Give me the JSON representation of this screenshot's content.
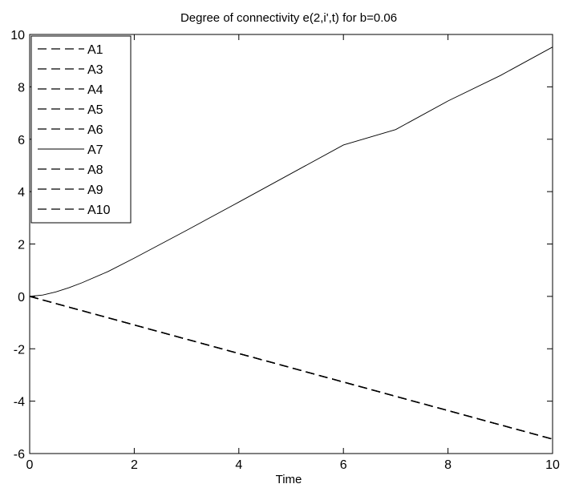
{
  "chart_data": {
    "type": "line",
    "title": "Degree of connectivity e(2,i',t) for b=0.06",
    "xlabel": "Time",
    "ylabel": "",
    "xlim": [
      0,
      10
    ],
    "ylim": [
      -6,
      10
    ],
    "x_ticks": [
      0,
      2,
      4,
      6,
      8,
      10
    ],
    "y_ticks": [
      -6,
      -4,
      -2,
      0,
      2,
      4,
      6,
      8,
      10
    ],
    "grid": false,
    "legend_position": "top-left",
    "series": [
      {
        "name": "A1",
        "style": "dashed",
        "color": "#000000",
        "x": [
          0,
          10
        ],
        "y": [
          0,
          -5.45
        ]
      },
      {
        "name": "A3",
        "style": "dashed",
        "color": "#000000",
        "x": [
          0,
          10
        ],
        "y": [
          0,
          -5.45
        ]
      },
      {
        "name": "A4",
        "style": "dashed",
        "color": "#000000",
        "x": [
          0,
          10
        ],
        "y": [
          0,
          -5.45
        ]
      },
      {
        "name": "A5",
        "style": "dashed",
        "color": "#000000",
        "x": [
          0,
          10
        ],
        "y": [
          0,
          -5.45
        ]
      },
      {
        "name": "A6",
        "style": "dashed",
        "color": "#000000",
        "x": [
          0,
          10
        ],
        "y": [
          0,
          -5.45
        ]
      },
      {
        "name": "A7",
        "style": "solid",
        "color": "#000000",
        "x": [
          0,
          0.25,
          0.5,
          0.75,
          1,
          1.5,
          2,
          3,
          4,
          5,
          6,
          7,
          8,
          9,
          10
        ],
        "y": [
          0,
          0.05,
          0.17,
          0.33,
          0.52,
          0.95,
          1.46,
          2.52,
          3.6,
          4.69,
          5.78,
          6.37,
          7.46,
          8.43,
          9.52
        ]
      },
      {
        "name": "A8",
        "style": "dashed",
        "color": "#000000",
        "x": [
          0,
          10
        ],
        "y": [
          0,
          -5.45
        ]
      },
      {
        "name": "A9",
        "style": "dashed",
        "color": "#000000",
        "x": [
          0,
          10
        ],
        "y": [
          0,
          -5.45
        ]
      },
      {
        "name": "A10",
        "style": "dashed",
        "color": "#000000",
        "x": [
          0,
          10
        ],
        "y": [
          0,
          -5.45
        ]
      }
    ]
  }
}
